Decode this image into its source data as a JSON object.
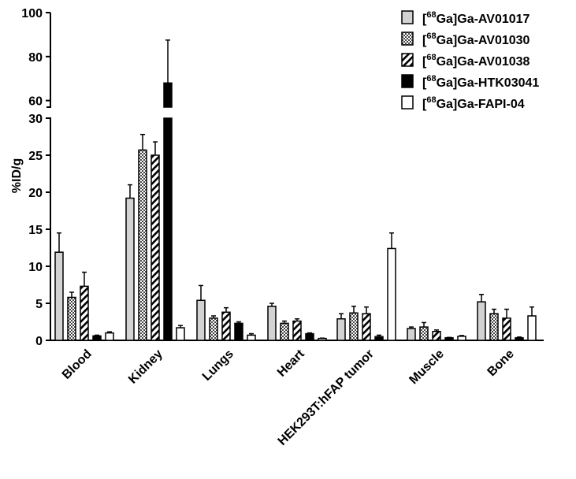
{
  "chart_data": {
    "type": "bar",
    "ylabel": "%ID/g",
    "axis_break": {
      "lower_max": 30,
      "upper_min": 57,
      "upper_max": 100
    },
    "lower_ticks": [
      0,
      5,
      10,
      15,
      20,
      25,
      30
    ],
    "upper_ticks": [
      60,
      80,
      100
    ],
    "categories": [
      "Blood",
      "Kidney",
      "Lungs",
      "Heart",
      "HEK293T:hFAP tumor",
      "Muscle",
      "Bone"
    ],
    "legend_position": "top-right",
    "series": [
      {
        "name_sup": "68",
        "name_pre": "[",
        "name_post": "Ga]Ga-AV01017",
        "pattern": "light-gray",
        "values": [
          11.9,
          19.2,
          5.4,
          4.6,
          2.9,
          1.6,
          5.2
        ],
        "errors": [
          2.6,
          1.8,
          2.0,
          0.4,
          0.7,
          0.2,
          1.0
        ]
      },
      {
        "name_sup": "68",
        "name_pre": "[",
        "name_post": "Ga]Ga-AV01030",
        "pattern": "checkered",
        "values": [
          5.8,
          25.7,
          3.0,
          2.3,
          3.7,
          1.8,
          3.6
        ],
        "errors": [
          0.7,
          2.1,
          0.3,
          0.3,
          0.9,
          0.6,
          0.6
        ]
      },
      {
        "name_sup": "68",
        "name_pre": "[",
        "name_post": "Ga]Ga-AV01038",
        "pattern": "diagonal-hatch",
        "values": [
          7.3,
          25.0,
          3.8,
          2.6,
          3.6,
          1.2,
          3.0
        ],
        "errors": [
          1.9,
          1.8,
          0.6,
          0.3,
          0.9,
          0.2,
          1.2
        ]
      },
      {
        "name_sup": "68",
        "name_pre": "[",
        "name_post": "Ga]Ga-HTK03041",
        "pattern": "solid-black",
        "values": [
          0.6,
          68.0,
          2.3,
          0.9,
          0.5,
          0.35,
          0.35
        ],
        "errors": [
          0.1,
          19.5,
          0.2,
          0.1,
          0.2,
          0.05,
          0.1
        ]
      },
      {
        "name_sup": "68",
        "name_pre": "[",
        "name_post": "Ga]Ga-FAPI-04",
        "pattern": "white",
        "values": [
          1.0,
          1.7,
          0.7,
          0.25,
          12.4,
          0.55,
          3.3
        ],
        "errors": [
          0.15,
          0.3,
          0.2,
          0.05,
          2.1,
          0.1,
          1.2
        ]
      }
    ]
  }
}
